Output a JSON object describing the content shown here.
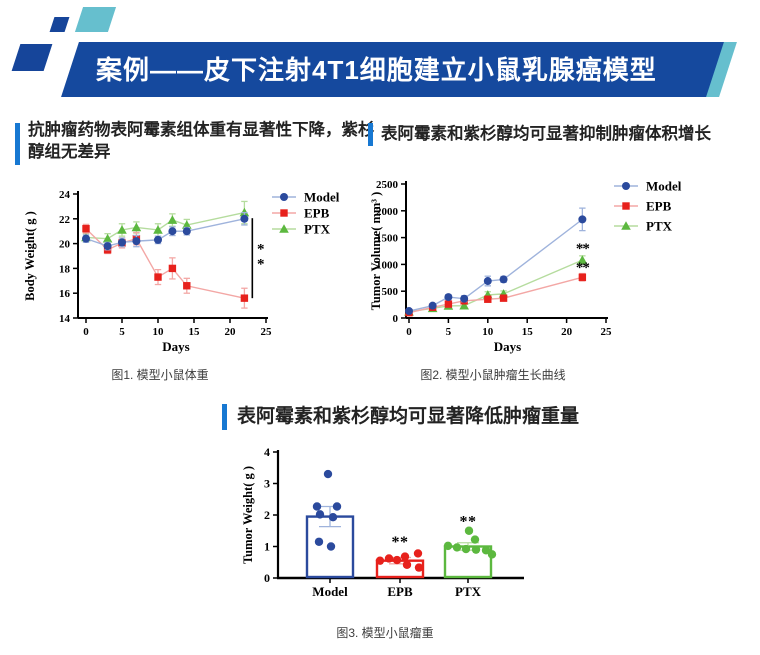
{
  "header": {
    "title": "案例——皮下注射4T1细胞建立小鼠乳腺癌模型",
    "banner_color": "#15499e",
    "teal_color": "#66bfce",
    "deco_blue": "#16459a"
  },
  "section_titles": {
    "accent_color": "#1778d2",
    "left": "抗肿瘤药物表阿霉素组体重有显著性下降，紫杉醇组无差异",
    "right": "表阿霉素和紫杉醇均可显著抑制肿瘤体积增长",
    "bottom": "表阿霉素和紫杉醇均可显著降低肿瘤重量"
  },
  "captions": {
    "fig1": "图1. 模型小鼠体重",
    "fig2": "图2. 模型小鼠肿瘤生长曲线",
    "fig3": "图3. 模型小鼠瘤重"
  },
  "chart_data": [
    {
      "type": "line",
      "title": "",
      "xlabel": "Days",
      "ylabel": "Body Weight( g )",
      "xlim": [
        0,
        25
      ],
      "ylim": [
        14,
        24
      ],
      "xticks": [
        0,
        5,
        10,
        15,
        20,
        25
      ],
      "yticks": [
        14,
        16,
        18,
        20,
        22,
        24
      ],
      "x": [
        0,
        3,
        5,
        7,
        10,
        12,
        14,
        22
      ],
      "series": [
        {
          "name": "Model",
          "marker": "circle",
          "color": "#2b4a9d",
          "line": "#9fb3dc",
          "values": [
            20.4,
            19.8,
            20.1,
            20.2,
            20.3,
            21.0,
            21.0,
            22.0
          ],
          "err": [
            0.3,
            0.3,
            0.35,
            0.45,
            0.3,
            0.35,
            0.3,
            0.5
          ]
        },
        {
          "name": "EPB",
          "marker": "square",
          "color": "#e7211c",
          "line": "#f3a7a5",
          "values": [
            21.2,
            19.5,
            20.05,
            20.4,
            17.3,
            18.0,
            16.6,
            15.6
          ],
          "err": [
            0.35,
            0.3,
            0.4,
            0.5,
            0.6,
            0.85,
            0.6,
            0.8
          ]
        },
        {
          "name": "PTX",
          "marker": "triangle",
          "color": "#5cb83f",
          "line": "#b5dc9e",
          "values": [
            20.5,
            20.4,
            21.1,
            21.3,
            21.1,
            21.9,
            21.5,
            22.5
          ],
          "err": [
            0.3,
            0.4,
            0.5,
            0.45,
            0.5,
            0.5,
            0.45,
            0.9
          ]
        }
      ],
      "legend": [
        "Model",
        "EPB",
        "PTX"
      ],
      "legend_position": "inside-top-right",
      "grid": false,
      "annotations": [
        {
          "type": "vline",
          "x": 23.1,
          "y1": 22.05,
          "y2": 15.6
        },
        {
          "type": "star",
          "x": 24.2,
          "y": 19.6,
          "text": "*"
        },
        {
          "type": "star",
          "x": 24.2,
          "y": 18.4,
          "text": "*"
        }
      ]
    },
    {
      "type": "line",
      "title": "",
      "xlabel": "Days",
      "ylabel": "Tumor Volume( mm³ )",
      "xlim": [
        0,
        25
      ],
      "ylim": [
        0,
        2500
      ],
      "xticks": [
        0,
        5,
        10,
        15,
        20,
        25
      ],
      "yticks": [
        0,
        500,
        1000,
        1500,
        2000,
        2500
      ],
      "x": [
        0,
        3,
        5,
        7,
        10,
        12,
        22
      ],
      "series": [
        {
          "name": "Model",
          "marker": "circle",
          "color": "#2b4a9d",
          "line": "#9fb3dc",
          "values": [
            130,
            230,
            390,
            360,
            690,
            720,
            1840
          ],
          "err": [
            25,
            35,
            45,
            55,
            90,
            55,
            210
          ]
        },
        {
          "name": "EPB",
          "marker": "square",
          "color": "#e7211c",
          "line": "#f3a7a5",
          "values": [
            100,
            200,
            260,
            320,
            350,
            370,
            760
          ],
          "err": [
            20,
            25,
            35,
            40,
            45,
            45,
            70
          ]
        },
        {
          "name": "PTX",
          "marker": "triangle",
          "color": "#5cb83f",
          "line": "#b5dc9e",
          "values": [
            115,
            180,
            225,
            230,
            430,
            450,
            1080
          ],
          "err": [
            20,
            25,
            30,
            35,
            60,
            55,
            80
          ]
        }
      ],
      "legend": [
        "Model",
        "EPB",
        "PTX"
      ],
      "legend_position": "outside-right",
      "grid": false,
      "annotations": [
        {
          "type": "star",
          "x": 22,
          "y": 1310,
          "text": "**"
        },
        {
          "type": "star",
          "x": 22,
          "y": 950,
          "text": "**"
        }
      ]
    },
    {
      "type": "bar",
      "title": "",
      "xlabel": "",
      "ylabel": "Tumor Weight( g )",
      "ylim": [
        0,
        4
      ],
      "yticks": [
        0,
        1,
        2,
        3,
        4
      ],
      "categories": [
        "Model",
        "EPB",
        "PTX"
      ],
      "values": [
        1.95,
        0.55,
        1.0
      ],
      "errors": [
        0.32,
        0.1,
        0.12
      ],
      "colors": [
        "#2b4a9d",
        "#e7211c",
        "#5cb83f"
      ],
      "err_colors": [
        "#9fb3dc",
        "#f3a7a5",
        "#b5dc9e"
      ],
      "points": [
        [
          [
            -2,
            3.3
          ],
          [
            -13,
            2.27
          ],
          [
            7,
            2.27
          ],
          [
            -10,
            2.02
          ],
          [
            3,
            1.93
          ],
          [
            -11,
            1.15
          ],
          [
            1,
            1.0
          ]
        ],
        [
          [
            -20,
            0.55
          ],
          [
            -11,
            0.62
          ],
          [
            -3,
            0.57
          ],
          [
            5,
            0.68
          ],
          [
            18,
            0.78
          ],
          [
            7,
            0.42
          ],
          [
            19,
            0.33
          ]
        ],
        [
          [
            1,
            1.5
          ],
          [
            7,
            1.22
          ],
          [
            -20,
            1.02
          ],
          [
            -11,
            0.97
          ],
          [
            -2,
            0.92
          ],
          [
            8,
            0.9
          ],
          [
            18,
            0.88
          ],
          [
            24,
            0.75
          ]
        ]
      ],
      "grid": false,
      "annotations": [
        {
          "type": "star",
          "cat": 1,
          "y": 1.15,
          "text": "**"
        },
        {
          "type": "star",
          "cat": 2,
          "y": 1.8,
          "text": "**"
        }
      ]
    }
  ]
}
